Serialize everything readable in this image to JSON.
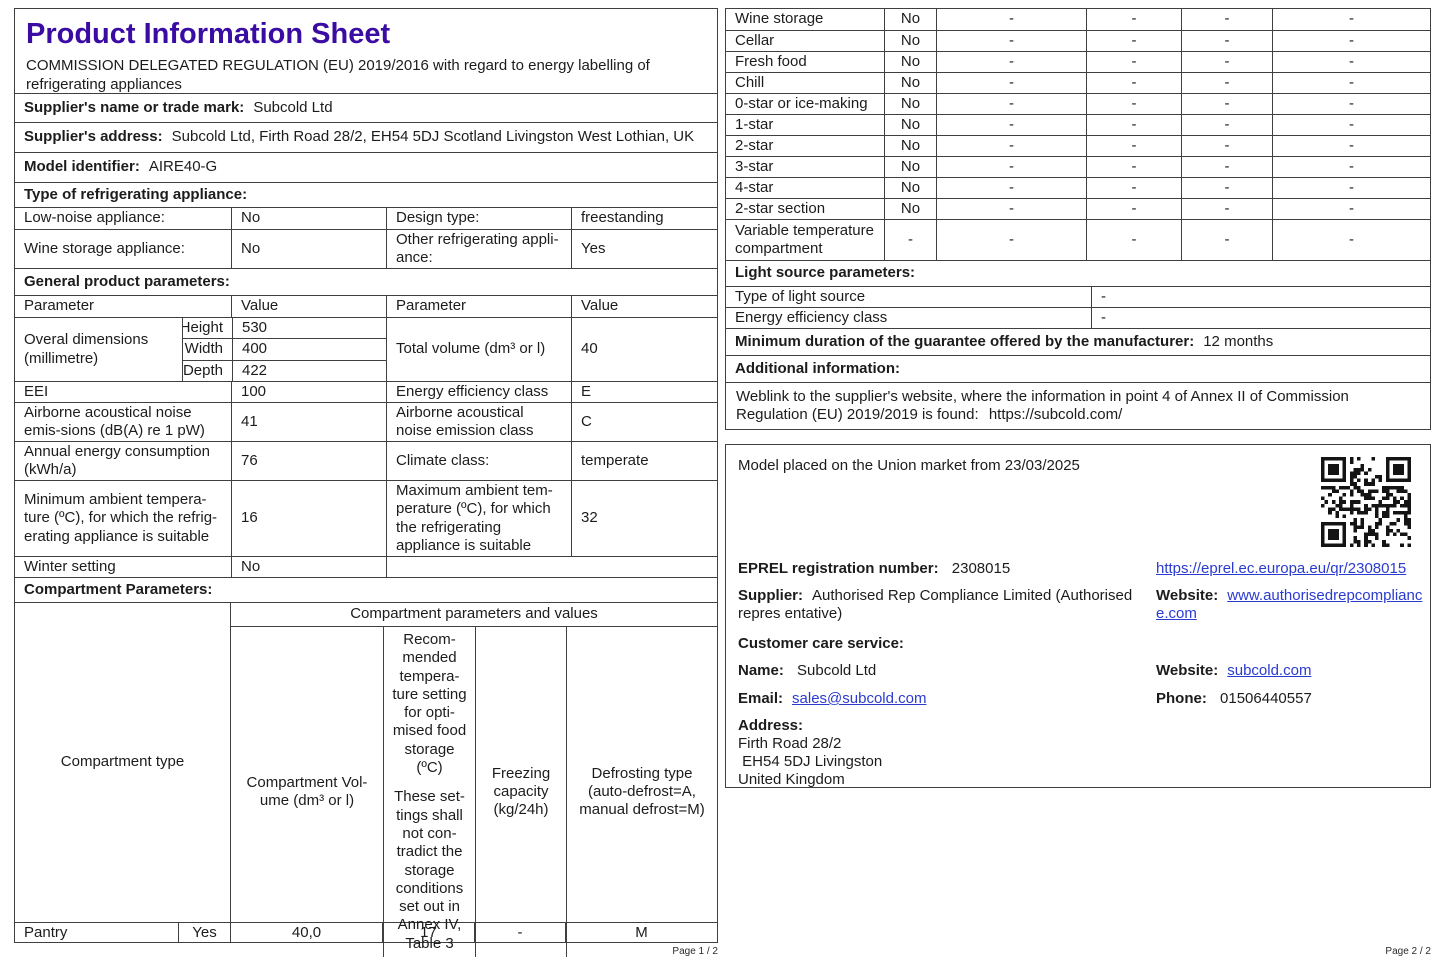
{
  "colors": {
    "title": "#3a0ca3",
    "link": "#2b3bd0",
    "border": "#3f3f3f"
  },
  "page1": {
    "title": "Product Information Sheet",
    "subtitle": "COMMISSION DELEGATED REGULATION (EU) 2019/2016 with regard to energy labelling of refrigerating appliances",
    "supplier_name": {
      "label": "Supplier's name or trade mark:",
      "value": "Subcold Ltd"
    },
    "supplier_address": {
      "label": "Supplier's address:",
      "value": "Subcold Ltd, Firth Road 28/2, EH54 5DJ Scotland Livingston West Lothian, UK"
    },
    "model_identifier": {
      "label": "Model identifier:",
      "value": "AIRE40-G"
    },
    "type_section_label": "Type of refrigerating appliance:",
    "type_rows": [
      {
        "label1": "Low-noise appliance:",
        "value1": "No",
        "label2": "Design type:",
        "value2": "freestanding"
      },
      {
        "label1": "Wine storage appliance:",
        "value1": "No",
        "label2": "Other refrigerating appli-ance:",
        "value2": "Yes"
      }
    ],
    "general_section_label": "General product parameters:",
    "param_header": {
      "col1": "Parameter",
      "col2": "Value",
      "col3": "Parameter",
      "col4": "Value"
    },
    "dimensions": {
      "label": "Overal dimensions (millimetre)",
      "rows": [
        {
          "name": "Height",
          "value": "530"
        },
        {
          "name": "Width",
          "value": "400"
        },
        {
          "name": "Depth",
          "value": "422"
        }
      ],
      "right_label": "Total volume (dm³ or l)",
      "right_value": "40"
    },
    "general_rows": [
      {
        "label1": "EEI",
        "value1": "100",
        "label2": "Energy efficiency class",
        "value2": "E"
      },
      {
        "label1": "Airborne acoustical noise emis-sions (dB(A) re 1 pW)",
        "value1": "41",
        "label2": "Airborne acoustical noise emission class",
        "value2": "C"
      },
      {
        "label1": "Annual energy consumption (kWh/a)",
        "value1": "76",
        "label2": "Climate class:",
        "value2": "temperate"
      },
      {
        "label1": "Minimum ambient tempera-ture (ºC), for which the refrig-erating appliance is suitable",
        "value1": "16",
        "label2": "Maximum ambient tem-perature (ºC), for which the refrigerating appliance is suitable",
        "value2": "32"
      },
      {
        "label1": "Winter setting",
        "value1": "No",
        "label2": "",
        "value2": ""
      }
    ],
    "compartment_section_label": "Compartment Parameters:",
    "compartment_table": {
      "span_header": "Compartment parameters and values",
      "col_type": "Compartment type",
      "col_volume": "Compartment Vol-ume (dm³ or l)",
      "col_temp_a": "Recom-mended tempera-ture setting for opti-mised food storage (ºC)",
      "col_temp_b": "These set-tings shall not con-tradict the storage conditions set out in Annex IV, Table 3",
      "col_freezing": "Freezing capacity (kg/24h)",
      "col_defrost": "Defrosting type (auto-defrost=A, manual defrost=M)",
      "row": {
        "type": "Pantry",
        "present": "Yes",
        "volume": "40,0",
        "temp": "17",
        "freezing": "-",
        "defrost": "M"
      }
    },
    "footer": "Page 1 / 2"
  },
  "page2": {
    "compartment_rows": [
      {
        "label": "Wine storage",
        "present": "No",
        "v1": "-",
        "v2": "-",
        "v3": "-",
        "v4": "-"
      },
      {
        "label": "Cellar",
        "present": "No",
        "v1": "-",
        "v2": "-",
        "v3": "-",
        "v4": "-"
      },
      {
        "label": "Fresh food",
        "present": "No",
        "v1": "-",
        "v2": "-",
        "v3": "-",
        "v4": "-"
      },
      {
        "label": "Chill",
        "present": "No",
        "v1": "-",
        "v2": "-",
        "v3": "-",
        "v4": "-"
      },
      {
        "label": "0-star or ice-making",
        "present": "No",
        "v1": "-",
        "v2": "-",
        "v3": "-",
        "v4": "-"
      },
      {
        "label": "1-star",
        "present": "No",
        "v1": "-",
        "v2": "-",
        "v3": "-",
        "v4": "-"
      },
      {
        "label": "2-star",
        "present": "No",
        "v1": "-",
        "v2": "-",
        "v3": "-",
        "v4": "-"
      },
      {
        "label": "3-star",
        "present": "No",
        "v1": "-",
        "v2": "-",
        "v3": "-",
        "v4": "-"
      },
      {
        "label": "4-star",
        "present": "No",
        "v1": "-",
        "v2": "-",
        "v3": "-",
        "v4": "-"
      },
      {
        "label": "2-star section",
        "present": "No",
        "v1": "-",
        "v2": "-",
        "v3": "-",
        "v4": "-"
      },
      {
        "label": "Variable temperature compartment",
        "present": "-",
        "v1": "-",
        "v2": "-",
        "v3": "-",
        "v4": "-"
      }
    ],
    "light_section_label": "Light source parameters:",
    "light_rows": [
      {
        "label": "Type of light source",
        "value": "-"
      },
      {
        "label": "Energy efficiency class",
        "value": "-"
      }
    ],
    "guarantee": {
      "label": "Minimum duration of the guarantee offered by the manufacturer:",
      "value": "12 months"
    },
    "additional_label": "Additional information:",
    "weblink_text": "Weblink to the supplier's website, where the information in point 4 of Annex II of Commission Regulation (EU) 2019/2019 is found:",
    "weblink_url": "https://subcold.com/",
    "market_box": {
      "placed_on_market": "Model placed on the Union market from 23/03/2025",
      "eprel_label": "EPREL registration number:",
      "eprel_value": "2308015",
      "eprel_link": "https://eprel.ec.europa.eu/qr/2308015",
      "supplier_label": "Supplier:",
      "supplier_value": "Authorised Rep Compliance Limited (Authorised repres entative)",
      "website_label": "Website:",
      "website_link": "www.authorisedrepcompliance.com",
      "care_label": "Customer care service:",
      "name_label": "Name:",
      "name_value": "Subcold Ltd",
      "care_website_label": "Website:",
      "care_website_link": "subcold.com",
      "email_label": "Email:",
      "email_link": "sales@subcold.com",
      "phone_label": "Phone:",
      "phone_value": "01506440557",
      "address_label": "Address:",
      "address_line1": "Firth Road 28/2",
      "address_line2": " EH54 5DJ Livingston",
      "address_line3": "United Kingdom"
    },
    "footer": "Page 2 / 2"
  }
}
